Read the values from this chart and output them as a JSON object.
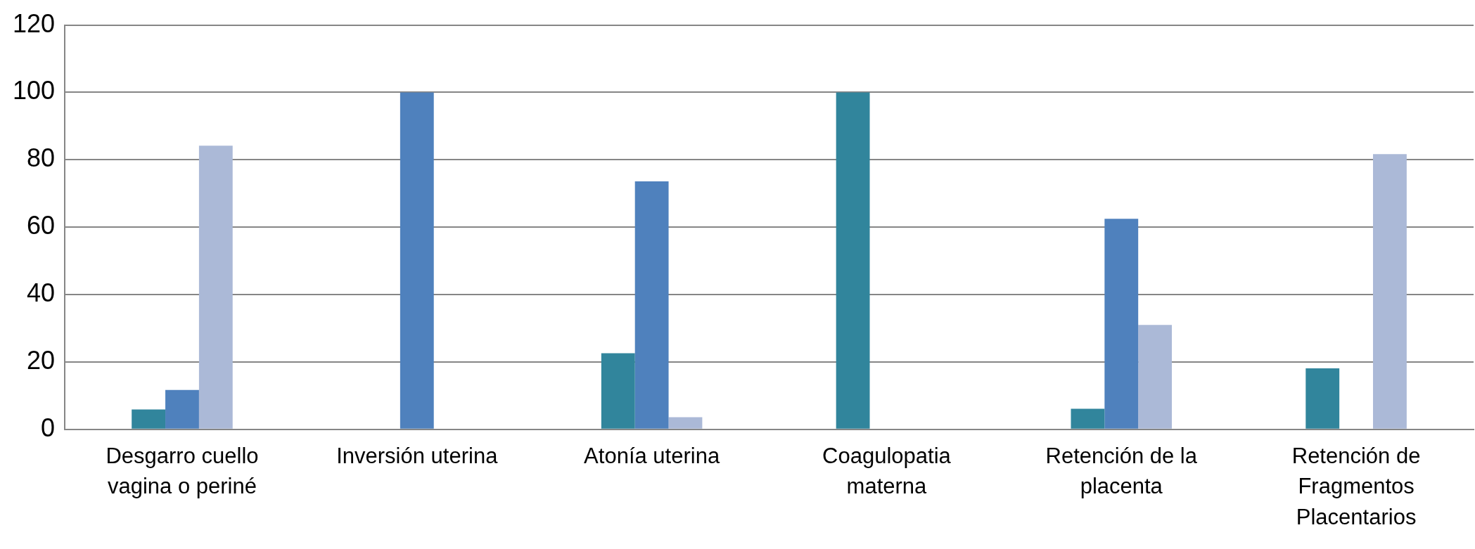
{
  "chart_data": {
    "type": "bar",
    "categories": [
      "Desgarro cuello vagina o periné",
      "Inversión uterina",
      "Atonía uterina",
      "Coagulopatia materna",
      "Retención de la placenta",
      "Retención de Fragmentos Placentarios"
    ],
    "series": [
      {
        "color": "#31859c",
        "values": [
          5.9,
          0,
          22.6,
          100,
          6.1,
          18.1
        ]
      },
      {
        "color": "#4f81bd",
        "values": [
          11.7,
          100,
          73.6,
          0,
          62.5,
          0
        ]
      },
      {
        "color": "#abb9d7",
        "values": [
          84.2,
          0,
          3.6,
          0,
          31,
          81.7
        ]
      }
    ],
    "ylim": [
      0,
      120
    ],
    "yticks": [
      0,
      20,
      40,
      60,
      80,
      100,
      120
    ],
    "grid": "y",
    "legend": false
  }
}
